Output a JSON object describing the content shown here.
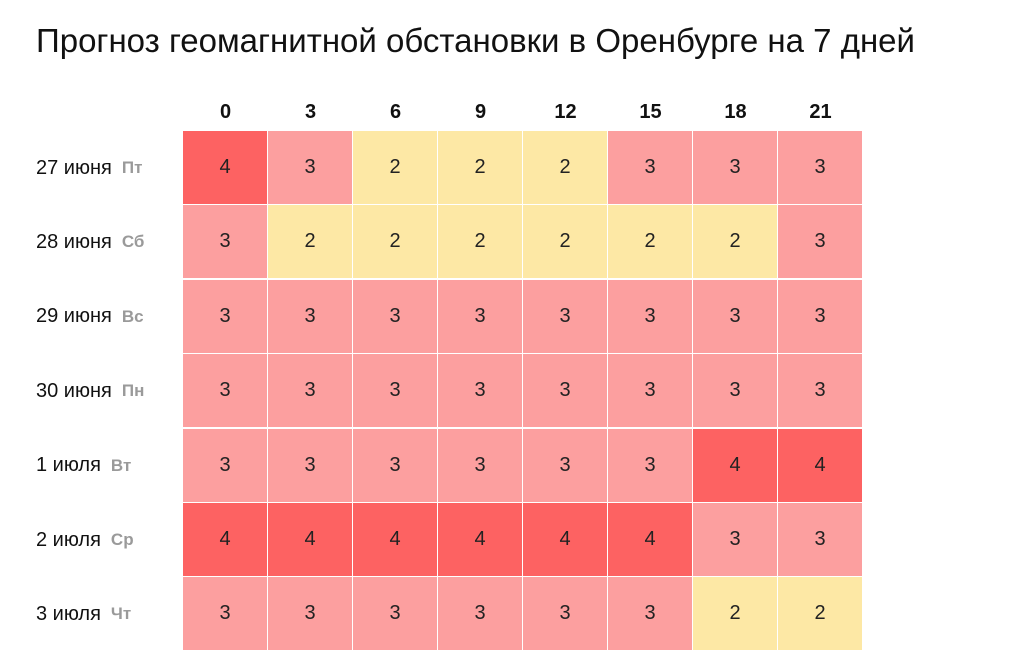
{
  "title": "Прогноз геомагнитной обстановки в Оренбурге на 7 дней",
  "colors": {
    "2": "#fde8a5",
    "3": "#fc9f9f",
    "4": "#fd6262"
  },
  "chart_data": {
    "type": "heatmap",
    "title": "Прогноз геомагнитной обстановки в Оренбурге на 7 дней",
    "x": [
      "0",
      "3",
      "6",
      "9",
      "12",
      "15",
      "18",
      "21"
    ],
    "rows": [
      {
        "date": "27 июня",
        "dow": "Пт",
        "values": [
          4,
          3,
          2,
          2,
          2,
          3,
          3,
          3
        ]
      },
      {
        "date": "28 июня",
        "dow": "Сб",
        "values": [
          3,
          2,
          2,
          2,
          2,
          2,
          2,
          3
        ]
      },
      {
        "date": "29 июня",
        "dow": "Вс",
        "values": [
          3,
          3,
          3,
          3,
          3,
          3,
          3,
          3
        ]
      },
      {
        "date": "30 июня",
        "dow": "Пн",
        "values": [
          3,
          3,
          3,
          3,
          3,
          3,
          3,
          3
        ]
      },
      {
        "date": "1 июля",
        "dow": "Вт",
        "values": [
          3,
          3,
          3,
          3,
          3,
          3,
          4,
          4
        ]
      },
      {
        "date": "2 июля",
        "dow": "Ср",
        "values": [
          4,
          4,
          4,
          4,
          4,
          4,
          3,
          3
        ]
      },
      {
        "date": "3 июля",
        "dow": "Чт",
        "values": [
          3,
          3,
          3,
          3,
          3,
          3,
          2,
          2
        ]
      }
    ]
  }
}
